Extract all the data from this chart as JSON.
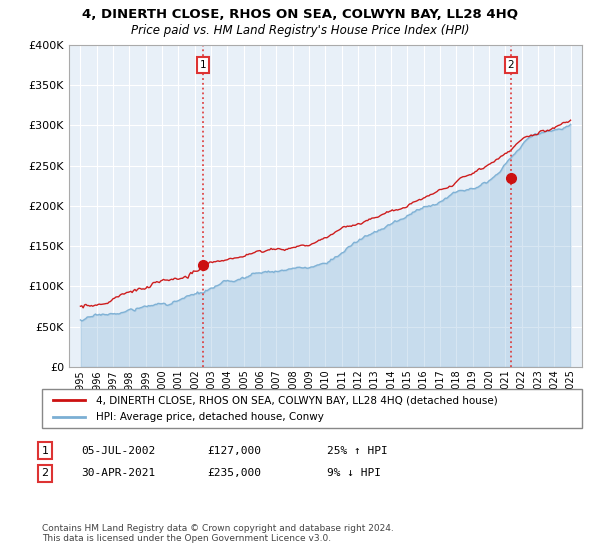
{
  "title": "4, DINERTH CLOSE, RHOS ON SEA, COLWYN BAY, LL28 4HQ",
  "subtitle": "Price paid vs. HM Land Registry's House Price Index (HPI)",
  "legend_line1": "4, DINERTH CLOSE, RHOS ON SEA, COLWYN BAY, LL28 4HQ (detached house)",
  "legend_line2": "HPI: Average price, detached house, Conwy",
  "annotation1_date": "05-JUL-2002",
  "annotation1_price": "£127,000",
  "annotation1_hpi": "25% ↑ HPI",
  "annotation2_date": "30-APR-2021",
  "annotation2_price": "£235,000",
  "annotation2_hpi": "9% ↓ HPI",
  "footer": "Contains HM Land Registry data © Crown copyright and database right 2024.\nThis data is licensed under the Open Government Licence v3.0.",
  "ylim": [
    0,
    400000
  ],
  "yticks": [
    0,
    50000,
    100000,
    150000,
    200000,
    250000,
    300000,
    350000,
    400000
  ],
  "hpi_color": "#7bafd4",
  "price_color": "#cc1111",
  "vline_color": "#dd3333",
  "background_color": "#ffffff",
  "plot_bg_color": "#e8f0f8",
  "grid_color": "#ffffff"
}
